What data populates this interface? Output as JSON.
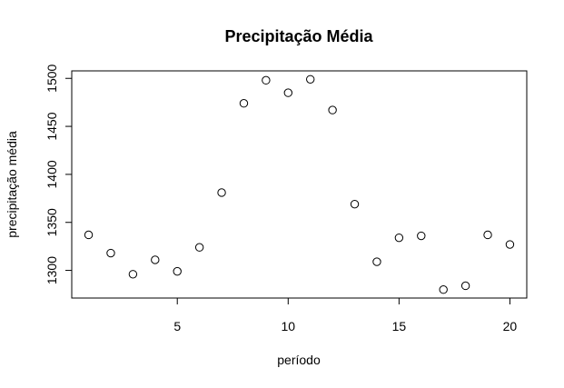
{
  "chart_data": {
    "type": "scatter",
    "title": "Precipitação Média",
    "xlabel": "período",
    "ylabel": "precipitação média",
    "xlim": [
      0.24,
      20.76
    ],
    "ylim": [
      1271.2,
      1507.8
    ],
    "x_ticks": [
      5,
      10,
      15,
      20
    ],
    "y_ticks": [
      1300,
      1350,
      1400,
      1450,
      1500
    ],
    "grid": false,
    "marker": "open-circle",
    "points": [
      {
        "x": 1,
        "y": 1337
      },
      {
        "x": 2,
        "y": 1318
      },
      {
        "x": 3,
        "y": 1296
      },
      {
        "x": 4,
        "y": 1311
      },
      {
        "x": 5,
        "y": 1299
      },
      {
        "x": 6,
        "y": 1324
      },
      {
        "x": 7,
        "y": 1381
      },
      {
        "x": 8,
        "y": 1474
      },
      {
        "x": 9,
        "y": 1498
      },
      {
        "x": 10,
        "y": 1485
      },
      {
        "x": 11,
        "y": 1499
      },
      {
        "x": 12,
        "y": 1467
      },
      {
        "x": 13,
        "y": 1369
      },
      {
        "x": 14,
        "y": 1309
      },
      {
        "x": 15,
        "y": 1334
      },
      {
        "x": 16,
        "y": 1336
      },
      {
        "x": 17,
        "y": 1280
      },
      {
        "x": 18,
        "y": 1284
      },
      {
        "x": 19,
        "y": 1337
      },
      {
        "x": 20,
        "y": 1327
      }
    ]
  }
}
